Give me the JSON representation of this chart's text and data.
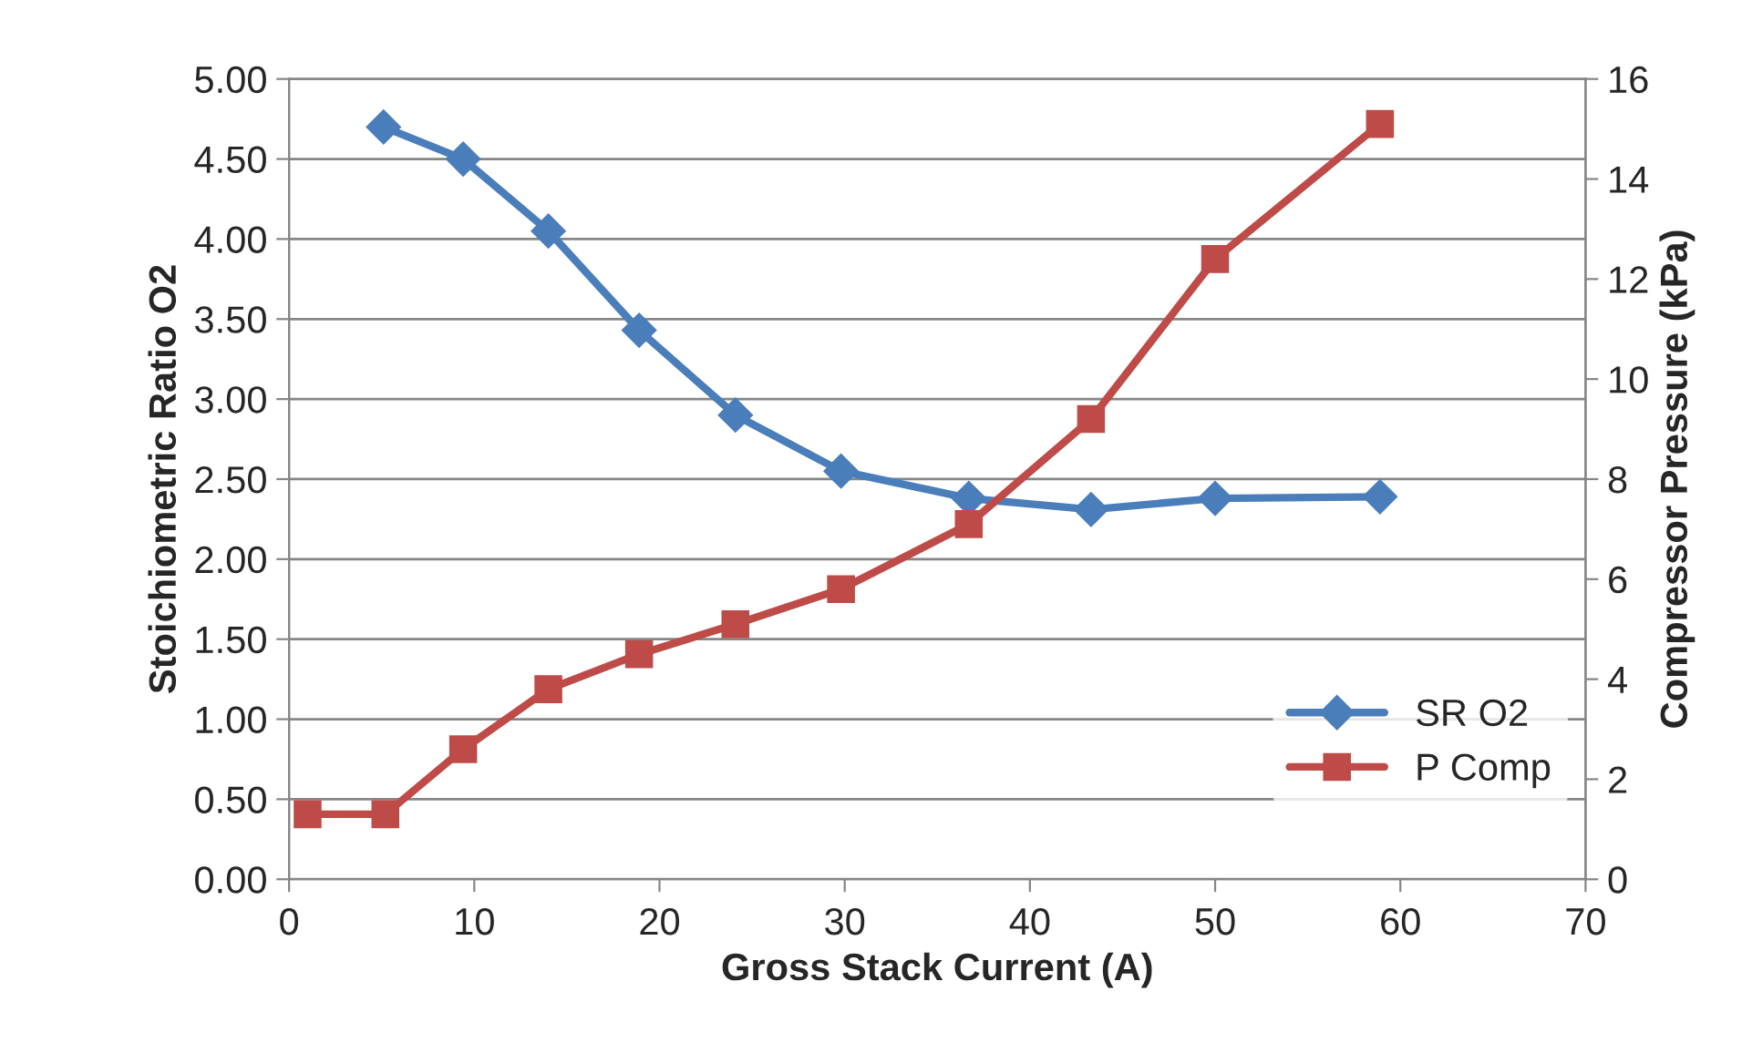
{
  "chart_data": {
    "type": "line",
    "xlabel": "Gross Stack Current (A)",
    "ylabel": "Stoichiometric Ratio O2",
    "y2label": "Compressor Pressure (kPa)",
    "xlim": [
      0,
      70
    ],
    "xticks": [
      0,
      10,
      20,
      30,
      40,
      50,
      60,
      70
    ],
    "ylim": [
      0,
      5
    ],
    "yticks": [
      {
        "value": 0,
        "label": "0.00"
      },
      {
        "value": 0.5,
        "label": "0.50"
      },
      {
        "value": 1,
        "label": "1.00"
      },
      {
        "value": 1.5,
        "label": "1.50"
      },
      {
        "value": 2,
        "label": "2.00"
      },
      {
        "value": 2.5,
        "label": "2.50"
      },
      {
        "value": 3,
        "label": "3.00"
      },
      {
        "value": 3.5,
        "label": "3.50"
      },
      {
        "value": 4,
        "label": "4.00"
      },
      {
        "value": 4.5,
        "label": "4.50"
      },
      {
        "value": 5,
        "label": "5.00"
      }
    ],
    "y2lim": [
      0,
      16
    ],
    "y2ticks": [
      0,
      2,
      4,
      6,
      8,
      10,
      12,
      14,
      16
    ],
    "grid": "y",
    "legend": "right",
    "line_style": "solid",
    "series": [
      {
        "name": "SR O2",
        "color": "#4a7ebb",
        "marker": "diamond",
        "x": [
          5.1,
          9.4,
          14.0,
          18.9,
          24.1,
          29.8,
          36.7,
          43.3,
          50.0,
          58.9
        ],
        "values": [
          4.7,
          4.5,
          4.05,
          3.43,
          2.9,
          2.55,
          2.38,
          2.31,
          2.38,
          2.39
        ]
      },
      {
        "name": "P Comp",
        "color": "#be4b48",
        "marker": "square",
        "axis": "y2",
        "x": [
          1.0,
          5.2,
          9.4,
          14.0,
          18.9,
          24.1,
          29.8,
          36.7,
          43.3,
          50.0,
          58.9
        ],
        "values": [
          1.3,
          1.3,
          2.6,
          3.8,
          4.5,
          5.1,
          5.8,
          7.1,
          9.2,
          12.4,
          15.1
        ]
      }
    ]
  }
}
